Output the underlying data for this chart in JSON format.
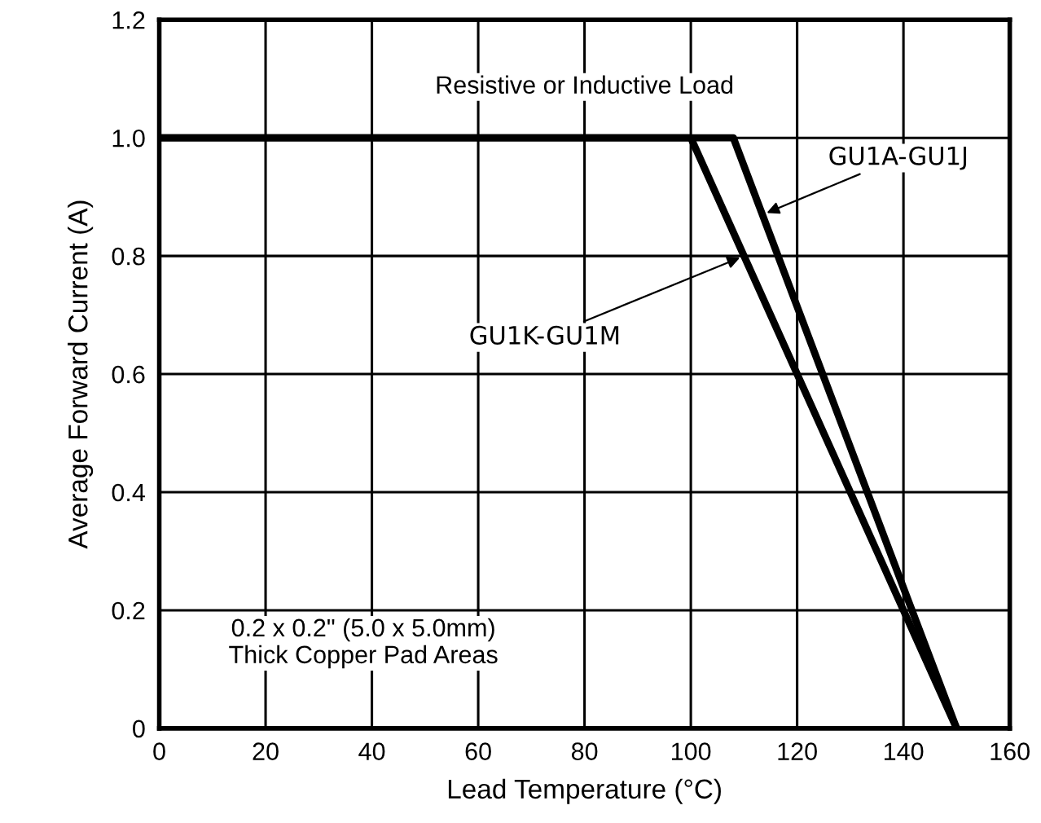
{
  "chart_data": {
    "type": "line",
    "xlabel": "Lead Temperature (°C)",
    "ylabel": "Average Forward Current (A)",
    "series": [
      {
        "x": [
          0,
          108,
          150
        ],
        "values": [
          1.0,
          1.0,
          0
        ],
        "color": "#000000"
      },
      {
        "x": [
          0,
          100,
          150
        ],
        "values": [
          1.0,
          1.0,
          0
        ],
        "color": "#000000"
      }
    ],
    "xlim": [
      0,
      160
    ],
    "xticks": [
      0,
      20,
      40,
      60,
      80,
      100,
      120,
      140,
      160
    ],
    "ylim": [
      0,
      1.2
    ],
    "yticks": [
      0,
      0.2,
      0.4,
      0.6,
      0.8,
      {
        "value": 1.0,
        "label": "1.0"
      },
      1.2
    ],
    "grid": true,
    "marker": "none",
    "line_style": "solid",
    "legend": false,
    "annotations": [
      {
        "text": "GU1A-GU1J",
        "x": 113.5,
        "y": 0.87
      },
      {
        "text": "GU1K-GU1M",
        "x": 110,
        "y": 0.8
      },
      "Resistive or Inductive Load",
      "0.2 x 0.2\" (5.0 x 5.0mm)\nThick Copper Pad Areas"
    ]
  }
}
